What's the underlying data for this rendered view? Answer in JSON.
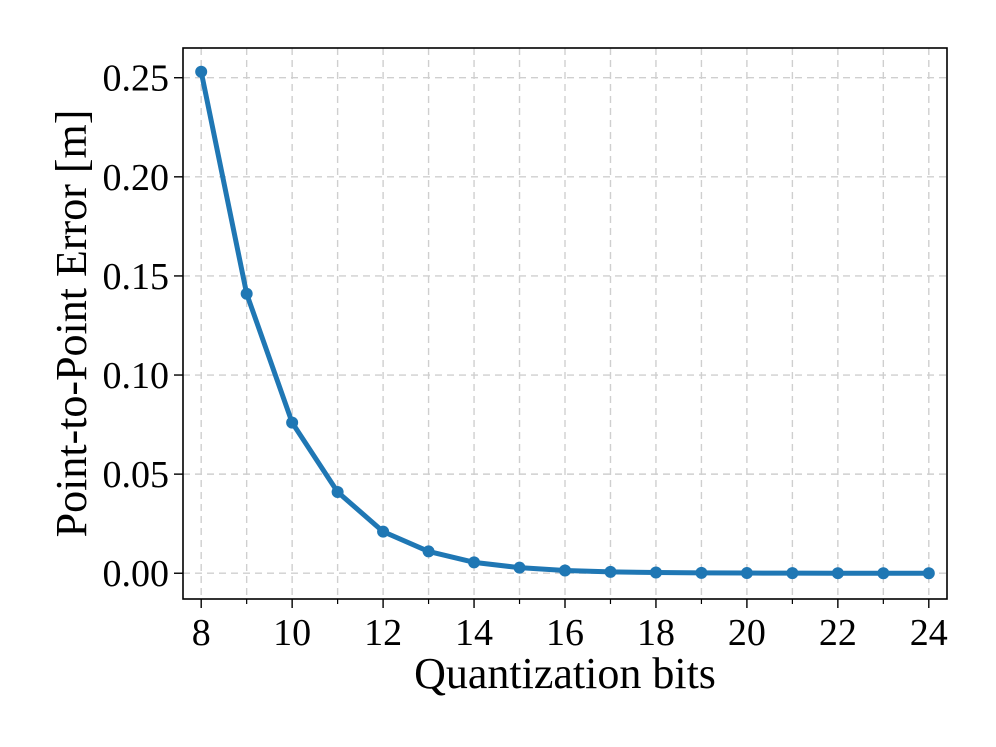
{
  "chart_data": {
    "type": "line",
    "title": "",
    "xlabel": "Quantization bits",
    "ylabel": "Point-to-Point Error [m]",
    "xlim": [
      7.6,
      24.4
    ],
    "ylim": [
      -0.013,
      0.265
    ],
    "x_ticks": [
      8,
      10,
      12,
      14,
      16,
      18,
      20,
      22,
      24
    ],
    "x_tick_labels": [
      "8",
      "10",
      "12",
      "14",
      "16",
      "18",
      "20",
      "22",
      "24"
    ],
    "x_minor_ticks": [
      9,
      11,
      13,
      15,
      17,
      19,
      21,
      23
    ],
    "y_ticks": [
      0.0,
      0.05,
      0.1,
      0.15,
      0.2,
      0.25
    ],
    "y_tick_labels": [
      "0.00",
      "0.05",
      "0.10",
      "0.15",
      "0.20",
      "0.25"
    ],
    "grid": true,
    "legend": "none",
    "series": [
      {
        "color": "#1f77b4",
        "marker": "circle",
        "x": [
          8,
          9,
          10,
          11,
          12,
          13,
          14,
          15,
          16,
          17,
          18,
          19,
          20,
          21,
          22,
          23,
          24
        ],
        "y": [
          0.253,
          0.141,
          0.076,
          0.041,
          0.021,
          0.011,
          0.0055,
          0.0028,
          0.0014,
          0.0007,
          0.00035,
          0.00018,
          9e-05,
          5e-05,
          2e-05,
          1e-05,
          0.0
        ]
      }
    ]
  }
}
